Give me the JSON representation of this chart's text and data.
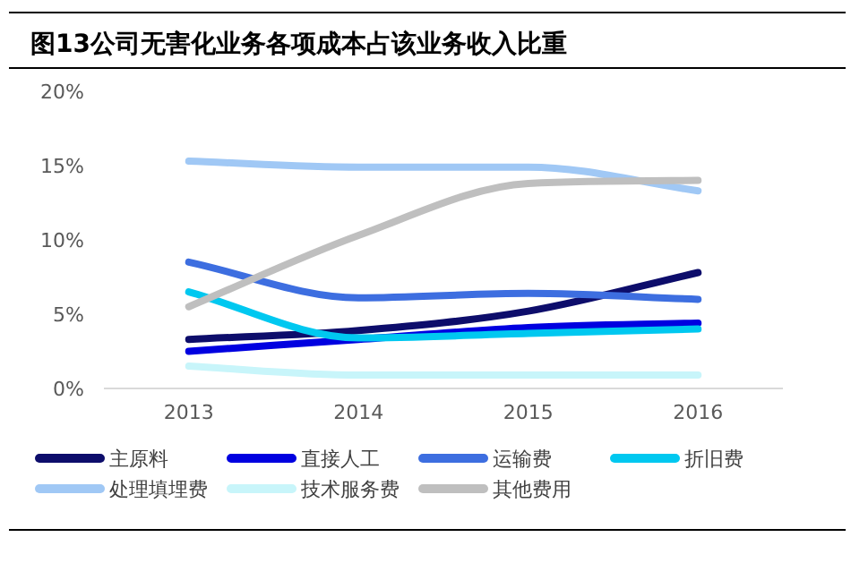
{
  "chart_data": {
    "type": "line",
    "title": "图13公司无害化业务各项成本占该业务收入比重",
    "categories": [
      "2013",
      "2014",
      "2015",
      "2016"
    ],
    "series": [
      {
        "name": "主原料",
        "color": "#0d0d6b",
        "values": [
          3.3,
          3.9,
          5.2,
          7.8
        ]
      },
      {
        "name": "直接人工",
        "color": "#0000e0",
        "values": [
          2.5,
          3.3,
          4.1,
          4.4
        ]
      },
      {
        "name": "运输费",
        "color": "#3d6ee0",
        "values": [
          8.5,
          6.1,
          6.4,
          6.0
        ]
      },
      {
        "name": "折旧费",
        "color": "#00c8f0",
        "values": [
          6.5,
          3.4,
          3.7,
          4.0
        ]
      },
      {
        "name": "处理填埋费",
        "color": "#a0c8f5",
        "values": [
          15.3,
          14.9,
          14.9,
          13.3
        ]
      },
      {
        "name": "技术服务费",
        "color": "#c8f5fa",
        "values": [
          1.5,
          0.9,
          0.9,
          0.9
        ]
      },
      {
        "name": "其他费用",
        "color": "#bfbfbf",
        "values": [
          5.5,
          10.3,
          13.8,
          14.0
        ]
      }
    ],
    "ylim": [
      0,
      20
    ],
    "yticks": [
      {
        "value": 0,
        "label": "0%"
      },
      {
        "value": 5,
        "label": "5%"
      },
      {
        "value": 10,
        "label": "10%"
      },
      {
        "value": 15,
        "label": "15%"
      },
      {
        "value": 20,
        "label": "20%"
      }
    ],
    "grid": false,
    "legend": "bottom",
    "line_style": "solid"
  }
}
